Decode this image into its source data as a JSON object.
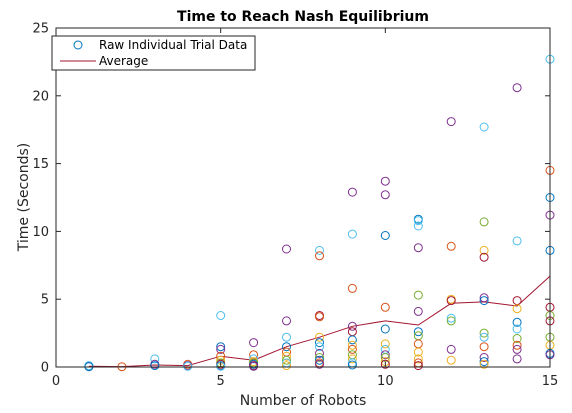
{
  "chart_data": {
    "type": "scatter",
    "title": "Time to Reach Nash Equilibrium",
    "xlabel": "Number of Robots",
    "ylabel": "Time (Seconds)",
    "xlim": [
      0,
      15
    ],
    "ylim": [
      0,
      25
    ],
    "xticks": [
      "0",
      "5",
      "10",
      "15"
    ],
    "yticks": [
      "0",
      "5",
      "10",
      "15",
      "20",
      "25"
    ],
    "grid": false,
    "legend_position": "top-left",
    "marker_colors": [
      "#0072BD",
      "#D95319",
      "#EDB120",
      "#7E2F8E",
      "#4DBEEE",
      "#77AC30",
      "#A2142F"
    ],
    "average_color": "#A2142F",
    "series": [
      {
        "name": "Raw Individual Trial Data",
        "kind": "scatter",
        "points": [
          {
            "x": 1,
            "y": 0.05,
            "c": 3
          },
          {
            "x": 1,
            "y": 0.1,
            "c": 4
          },
          {
            "x": 1,
            "y": 0.02,
            "c": 0
          },
          {
            "x": 2,
            "y": 0.02,
            "c": 1
          },
          {
            "x": 3,
            "y": 0.6,
            "c": 4
          },
          {
            "x": 3,
            "y": 0.2,
            "c": 3
          },
          {
            "x": 3,
            "y": 0.1,
            "c": 0
          },
          {
            "x": 4,
            "y": 0.2,
            "c": 1
          },
          {
            "x": 4,
            "y": 0.1,
            "c": 3
          },
          {
            "x": 4,
            "y": 0.05,
            "c": 4
          },
          {
            "x": 5,
            "y": 3.8,
            "c": 4
          },
          {
            "x": 5,
            "y": 1.5,
            "c": 0
          },
          {
            "x": 5,
            "y": 1.3,
            "c": 3
          },
          {
            "x": 5,
            "y": 0.8,
            "c": 1
          },
          {
            "x": 5,
            "y": 0.5,
            "c": 2
          },
          {
            "x": 5,
            "y": 0.3,
            "c": 5
          },
          {
            "x": 5,
            "y": 0.2,
            "c": 6
          },
          {
            "x": 5,
            "y": 0.1,
            "c": 0
          },
          {
            "x": 5,
            "y": 0.05,
            "c": 4
          },
          {
            "x": 6,
            "y": 1.8,
            "c": 3
          },
          {
            "x": 6,
            "y": 0.9,
            "c": 1
          },
          {
            "x": 6,
            "y": 0.6,
            "c": 4
          },
          {
            "x": 6,
            "y": 0.4,
            "c": 2
          },
          {
            "x": 6,
            "y": 0.3,
            "c": 5
          },
          {
            "x": 6,
            "y": 0.2,
            "c": 0
          },
          {
            "x": 6,
            "y": 0.1,
            "c": 6
          },
          {
            "x": 6,
            "y": 0.05,
            "c": 3
          },
          {
            "x": 7,
            "y": 8.7,
            "c": 3
          },
          {
            "x": 7,
            "y": 3.4,
            "c": 3
          },
          {
            "x": 7,
            "y": 2.2,
            "c": 4
          },
          {
            "x": 7,
            "y": 1.5,
            "c": 0
          },
          {
            "x": 7,
            "y": 1.1,
            "c": 1
          },
          {
            "x": 7,
            "y": 0.8,
            "c": 2
          },
          {
            "x": 7,
            "y": 0.5,
            "c": 5
          },
          {
            "x": 7,
            "y": 0.3,
            "c": 4
          },
          {
            "x": 7,
            "y": 0.1,
            "c": 2
          },
          {
            "x": 8,
            "y": 8.6,
            "c": 4
          },
          {
            "x": 8,
            "y": 8.2,
            "c": 1
          },
          {
            "x": 8,
            "y": 3.8,
            "c": 6
          },
          {
            "x": 8,
            "y": 3.7,
            "c": 1
          },
          {
            "x": 8,
            "y": 2.2,
            "c": 2
          },
          {
            "x": 8,
            "y": 1.8,
            "c": 0
          },
          {
            "x": 8,
            "y": 1.5,
            "c": 4
          },
          {
            "x": 8,
            "y": 1.0,
            "c": 3
          },
          {
            "x": 8,
            "y": 0.7,
            "c": 5
          },
          {
            "x": 8,
            "y": 0.5,
            "c": 0
          },
          {
            "x": 8,
            "y": 0.3,
            "c": 1
          },
          {
            "x": 8,
            "y": 0.2,
            "c": 3
          },
          {
            "x": 9,
            "y": 12.9,
            "c": 3
          },
          {
            "x": 9,
            "y": 9.8,
            "c": 4
          },
          {
            "x": 9,
            "y": 5.8,
            "c": 1
          },
          {
            "x": 9,
            "y": 3.0,
            "c": 3
          },
          {
            "x": 9,
            "y": 2.6,
            "c": 6
          },
          {
            "x": 9,
            "y": 2.0,
            "c": 0
          },
          {
            "x": 9,
            "y": 1.6,
            "c": 2
          },
          {
            "x": 9,
            "y": 1.3,
            "c": 1
          },
          {
            "x": 9,
            "y": 0.9,
            "c": 5
          },
          {
            "x": 9,
            "y": 0.6,
            "c": 2
          },
          {
            "x": 9,
            "y": 0.3,
            "c": 4
          },
          {
            "x": 9,
            "y": 0.15,
            "c": 0
          },
          {
            "x": 10,
            "y": 13.7,
            "c": 3
          },
          {
            "x": 10,
            "y": 12.7,
            "c": 3
          },
          {
            "x": 10,
            "y": 9.7,
            "c": 0
          },
          {
            "x": 10,
            "y": 4.4,
            "c": 1
          },
          {
            "x": 10,
            "y": 2.8,
            "c": 0
          },
          {
            "x": 10,
            "y": 1.7,
            "c": 2
          },
          {
            "x": 10,
            "y": 1.3,
            "c": 4
          },
          {
            "x": 10,
            "y": 0.9,
            "c": 3
          },
          {
            "x": 10,
            "y": 0.7,
            "c": 5
          },
          {
            "x": 10,
            "y": 0.4,
            "c": 2
          },
          {
            "x": 10,
            "y": 0.2,
            "c": 6
          },
          {
            "x": 11,
            "y": 10.9,
            "c": 0
          },
          {
            "x": 11,
            "y": 10.8,
            "c": 4
          },
          {
            "x": 11,
            "y": 10.4,
            "c": 4
          },
          {
            "x": 11,
            "y": 8.8,
            "c": 3
          },
          {
            "x": 11,
            "y": 5.3,
            "c": 5
          },
          {
            "x": 11,
            "y": 4.1,
            "c": 3
          },
          {
            "x": 11,
            "y": 2.6,
            "c": 0
          },
          {
            "x": 11,
            "y": 2.3,
            "c": 5
          },
          {
            "x": 11,
            "y": 1.7,
            "c": 1
          },
          {
            "x": 11,
            "y": 1.1,
            "c": 2
          },
          {
            "x": 11,
            "y": 0.6,
            "c": 2
          },
          {
            "x": 11,
            "y": 0.3,
            "c": 1
          },
          {
            "x": 11,
            "y": 0.1,
            "c": 6
          },
          {
            "x": 12,
            "y": 18.1,
            "c": 3
          },
          {
            "x": 12,
            "y": 8.9,
            "c": 1
          },
          {
            "x": 12,
            "y": 5.0,
            "c": 2
          },
          {
            "x": 12,
            "y": 4.9,
            "c": 6
          },
          {
            "x": 12,
            "y": 3.6,
            "c": 4
          },
          {
            "x": 12,
            "y": 3.4,
            "c": 5
          },
          {
            "x": 12,
            "y": 1.3,
            "c": 3
          },
          {
            "x": 12,
            "y": 0.5,
            "c": 2
          },
          {
            "x": 13,
            "y": 17.7,
            "c": 4
          },
          {
            "x": 13,
            "y": 10.7,
            "c": 5
          },
          {
            "x": 13,
            "y": 8.6,
            "c": 2
          },
          {
            "x": 13,
            "y": 8.1,
            "c": 6
          },
          {
            "x": 13,
            "y": 5.1,
            "c": 3
          },
          {
            "x": 13,
            "y": 4.9,
            "c": 0
          },
          {
            "x": 13,
            "y": 2.5,
            "c": 5
          },
          {
            "x": 13,
            "y": 2.2,
            "c": 4
          },
          {
            "x": 13,
            "y": 1.5,
            "c": 1
          },
          {
            "x": 13,
            "y": 0.7,
            "c": 3
          },
          {
            "x": 13,
            "y": 0.4,
            "c": 0
          },
          {
            "x": 13,
            "y": 0.2,
            "c": 2
          },
          {
            "x": 14,
            "y": 20.6,
            "c": 3
          },
          {
            "x": 14,
            "y": 9.3,
            "c": 4
          },
          {
            "x": 14,
            "y": 4.9,
            "c": 6
          },
          {
            "x": 14,
            "y": 4.3,
            "c": 2
          },
          {
            "x": 14,
            "y": 3.3,
            "c": 0
          },
          {
            "x": 14,
            "y": 2.8,
            "c": 4
          },
          {
            "x": 14,
            "y": 2.1,
            "c": 5
          },
          {
            "x": 14,
            "y": 1.6,
            "c": 1
          },
          {
            "x": 14,
            "y": 1.3,
            "c": 3
          },
          {
            "x": 14,
            "y": 0.6,
            "c": 3
          },
          {
            "x": 15,
            "y": 22.7,
            "c": 4
          },
          {
            "x": 15,
            "y": 14.5,
            "c": 1
          },
          {
            "x": 15,
            "y": 12.5,
            "c": 0
          },
          {
            "x": 15,
            "y": 11.2,
            "c": 3
          },
          {
            "x": 15,
            "y": 8.6,
            "c": 0
          },
          {
            "x": 15,
            "y": 4.4,
            "c": 6
          },
          {
            "x": 15,
            "y": 3.8,
            "c": 5
          },
          {
            "x": 15,
            "y": 3.4,
            "c": 6
          },
          {
            "x": 15,
            "y": 2.2,
            "c": 5
          },
          {
            "x": 15,
            "y": 1.6,
            "c": 2
          },
          {
            "x": 15,
            "y": 1.0,
            "c": 0
          },
          {
            "x": 15,
            "y": 0.9,
            "c": 3
          }
        ]
      },
      {
        "name": "Average",
        "kind": "line",
        "x": [
          1,
          2,
          3,
          4,
          5,
          6,
          7,
          8,
          9,
          10,
          11,
          12,
          13,
          14,
          15
        ],
        "y": [
          0.05,
          0.03,
          0.15,
          0.1,
          0.8,
          0.5,
          1.5,
          2.2,
          3.0,
          3.4,
          3.1,
          4.7,
          4.8,
          4.5,
          6.7
        ]
      }
    ]
  }
}
